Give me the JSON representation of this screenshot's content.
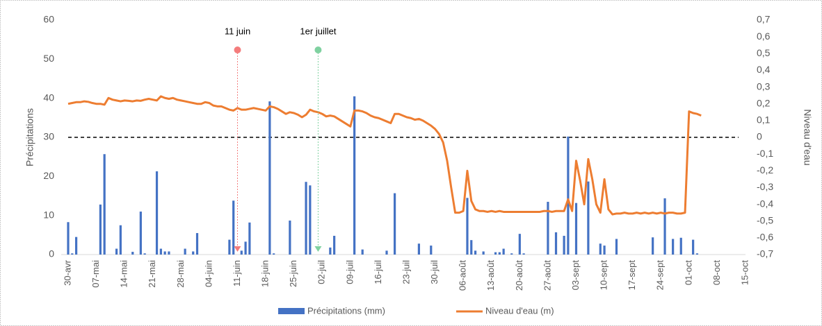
{
  "chart_data": {
    "type": "bar_line",
    "y_axis_label": "Précipitations",
    "y2_axis_label": "Niveau d'eau",
    "categories": [
      "30-avr",
      null,
      null,
      null,
      null,
      null,
      null,
      "07-mai",
      null,
      null,
      null,
      null,
      null,
      null,
      "14-mai",
      null,
      null,
      null,
      null,
      null,
      null,
      "21-mai",
      null,
      null,
      null,
      null,
      null,
      null,
      "28-mai",
      null,
      null,
      null,
      null,
      null,
      null,
      "04-juin",
      null,
      null,
      null,
      null,
      null,
      null,
      "11-juin",
      null,
      null,
      null,
      null,
      null,
      null,
      "18-juin",
      null,
      null,
      null,
      null,
      null,
      null,
      "25-juin",
      null,
      null,
      null,
      null,
      null,
      null,
      "02-juil",
      null,
      null,
      null,
      null,
      null,
      null,
      "09-juil",
      null,
      null,
      null,
      null,
      null,
      null,
      "16-juil",
      null,
      null,
      null,
      null,
      null,
      null,
      "23-juil",
      null,
      null,
      null,
      null,
      null,
      null,
      "30-juil",
      null,
      null,
      null,
      null,
      null,
      null,
      "06-août",
      null,
      null,
      null,
      null,
      null,
      null,
      "13-août",
      null,
      null,
      null,
      null,
      null,
      null,
      "20-août",
      null,
      null,
      null,
      null,
      null,
      null,
      "27-août",
      null,
      null,
      null,
      null,
      null,
      null,
      "03-sept",
      null,
      null,
      null,
      null,
      null,
      null,
      "10-sept",
      null,
      null,
      null,
      null,
      null,
      null,
      "17-sept",
      null,
      null,
      null,
      null,
      null,
      null,
      "24-sept",
      null,
      null,
      null,
      null,
      null,
      null,
      "01-oct",
      null,
      null,
      null,
      null,
      null,
      null,
      "08-oct",
      null,
      null,
      null,
      null,
      null,
      null,
      "15-oct"
    ],
    "series": [
      {
        "name": "Précipitations (mm)",
        "type": "bar",
        "color": "#4472c4",
        "axis": "y",
        "values": [
          8.3,
          0.3,
          4.5,
          0,
          0,
          0,
          0,
          0,
          12.8,
          25.7,
          0,
          0,
          1.5,
          7.5,
          0,
          0,
          0.7,
          0,
          11,
          0.3,
          0,
          0,
          21.3,
          1.5,
          0.8,
          0.8,
          0,
          0,
          0,
          1.5,
          0,
          0.8,
          5.5,
          0,
          0,
          0,
          0,
          0,
          0,
          0,
          3.8,
          13.8,
          0,
          1,
          3.3,
          8.2,
          0,
          0,
          0,
          0,
          39.2,
          0.3,
          0,
          0,
          0,
          8.7,
          0,
          0,
          0,
          18.6,
          17.7,
          0,
          0,
          0,
          0,
          1.8,
          4.8,
          0,
          0,
          0,
          0,
          40.5,
          0,
          1.3,
          0,
          0,
          0,
          0,
          0,
          1,
          0,
          15.7,
          0,
          0,
          0,
          0,
          0,
          2.8,
          0,
          0,
          2.3,
          0,
          0,
          0,
          0,
          0,
          0,
          0,
          0,
          14.5,
          3.7,
          1,
          0,
          0.8,
          0,
          0,
          0.6,
          0.6,
          1.5,
          0,
          0.3,
          0,
          5.3,
          0.3,
          0,
          0,
          0,
          0,
          0,
          13.5,
          0,
          5.7,
          0,
          4.8,
          30.2,
          0,
          13.2,
          0,
          0,
          18.7,
          0,
          0,
          2.8,
          2.3,
          0,
          0,
          4,
          0,
          0,
          0,
          0,
          0,
          0,
          0,
          0,
          4.4,
          0,
          0,
          14.4,
          0,
          4,
          0,
          4.3,
          0,
          0,
          3.8,
          0.3,
          0,
          0,
          0,
          0,
          0,
          0,
          0,
          0,
          0,
          0,
          0,
          0
        ]
      },
      {
        "name": "Niveau d'eau (m)",
        "type": "line",
        "color": "#ed7d31",
        "axis": "y2",
        "values": [
          0.2,
          0.205,
          0.21,
          0.21,
          0.215,
          0.212,
          0.205,
          0.2,
          0.2,
          0.195,
          0.235,
          0.225,
          0.22,
          0.215,
          0.22,
          0.218,
          0.215,
          0.22,
          0.218,
          0.225,
          0.23,
          0.225,
          0.22,
          0.245,
          0.235,
          0.23,
          0.235,
          0.225,
          0.22,
          0.215,
          0.21,
          0.205,
          0.2,
          0.2,
          0.21,
          0.205,
          0.19,
          0.185,
          0.185,
          0.175,
          0.165,
          0.16,
          0.175,
          0.165,
          0.165,
          0.17,
          0.175,
          0.17,
          0.165,
          0.16,
          0.185,
          0.18,
          0.17,
          0.155,
          0.14,
          0.15,
          0.145,
          0.135,
          0.12,
          0.135,
          0.165,
          0.155,
          0.15,
          0.14,
          0.125,
          0.13,
          0.125,
          0.11,
          0.095,
          0.08,
          0.065,
          0.16,
          0.16,
          0.155,
          0.145,
          0.13,
          0.12,
          0.115,
          0.105,
          0.095,
          0.085,
          0.14,
          0.14,
          0.13,
          0.12,
          0.115,
          0.105,
          0.11,
          0.1,
          0.085,
          0.07,
          0.05,
          0.02,
          -0.03,
          -0.14,
          -0.3,
          -0.45,
          -0.45,
          -0.44,
          -0.2,
          -0.38,
          -0.43,
          -0.44,
          -0.44,
          -0.445,
          -0.44,
          -0.445,
          -0.44,
          -0.445,
          -0.445,
          -0.445,
          -0.445,
          -0.445,
          -0.445,
          -0.445,
          -0.445,
          -0.445,
          -0.445,
          -0.44,
          -0.44,
          -0.445,
          -0.44,
          -0.44,
          -0.44,
          -0.37,
          -0.44,
          -0.14,
          -0.26,
          -0.4,
          -0.13,
          -0.25,
          -0.4,
          -0.45,
          -0.25,
          -0.43,
          -0.46,
          -0.455,
          -0.455,
          -0.45,
          -0.455,
          -0.455,
          -0.45,
          -0.455,
          -0.45,
          -0.455,
          -0.45,
          -0.455,
          -0.45,
          -0.455,
          -0.45,
          -0.45,
          -0.455,
          -0.455,
          -0.45,
          0.155,
          0.145,
          0.14,
          0.13,
          null,
          null,
          null,
          null,
          null,
          null,
          null,
          null,
          null,
          null,
          null
        ]
      }
    ],
    "ylim": [
      0,
      60
    ],
    "yticks": [
      0,
      10,
      20,
      30,
      40,
      50,
      60
    ],
    "y2lim": [
      -0.7,
      0.7
    ],
    "y2ticks": [
      {
        "value": -0.7,
        "label": "-0,7"
      },
      {
        "value": -0.6,
        "label": "-0,6"
      },
      {
        "value": -0.5,
        "label": "-0,5"
      },
      {
        "value": -0.4,
        "label": "-0,4"
      },
      {
        "value": -0.3,
        "label": "-0,3"
      },
      {
        "value": -0.2,
        "label": "-0,2"
      },
      {
        "value": -0.1,
        "label": "-0,1"
      },
      0,
      {
        "value": 0.1,
        "label": "0,1"
      },
      {
        "value": 0.2,
        "label": "0,2"
      },
      {
        "value": 0.3,
        "label": "0,3"
      },
      {
        "value": 0.4,
        "label": "0,4"
      },
      {
        "value": 0.5,
        "label": "0,5"
      },
      {
        "value": 0.6,
        "label": "0,6"
      },
      {
        "value": 0.7,
        "label": "0,7"
      }
    ],
    "reference_line": {
      "axis": "y2",
      "value": 0,
      "color": "#000000"
    },
    "annotations": [
      {
        "text": "11 juin",
        "category_index": 42,
        "color": "#f47c7c"
      },
      {
        "text": "1er juillet",
        "category_index": 62,
        "color": "#7fd1a0"
      }
    ],
    "legend": "bottom"
  }
}
